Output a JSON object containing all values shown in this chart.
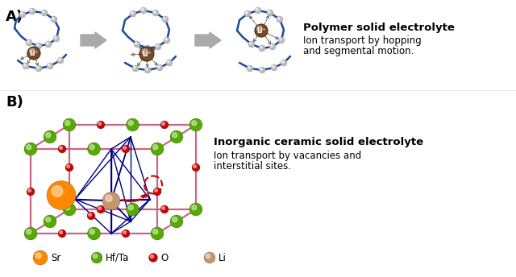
{
  "title_A": "A)",
  "title_B": "B)",
  "polymer_title": "Polymer solid electrolyte",
  "polymer_desc1": "Ion transport by hopping",
  "polymer_desc2": "and segmental motion.",
  "inorganic_title": "Inorganic ceramic solid electrolyte",
  "inorganic_desc1": "Ion transport by vacancies and",
  "inorganic_desc2": "interstitial sites.",
  "legend_labels": [
    "Sr",
    "Hf/Ta",
    "O",
    "Li"
  ],
  "legend_colors": [
    "#FF8800",
    "#55AA00",
    "#CC0000",
    "#C8956A"
  ],
  "bg_color": "#FFFFFF",
  "chain_color": "#1A4A9F",
  "node_color": "#BBBBBB",
  "li_ion_color": "#7A4A28",
  "arrow_gray": "#AAAAAA",
  "frame_pink": "#CC6688",
  "crystal_navy": "#000080",
  "sr_color": "#FF8800",
  "hfta_color": "#55AA00",
  "o_color": "#CC0000",
  "li_xtal_color": "#C8956A"
}
